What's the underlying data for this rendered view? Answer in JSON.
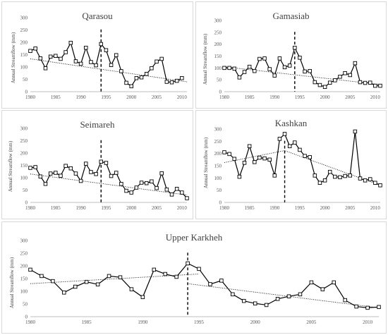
{
  "chart_data": [
    {
      "type": "line",
      "title": "Qarasou",
      "ylabel": "Annual Streamflow (mm)",
      "xlim": [
        1980,
        2011
      ],
      "ylim": [
        0,
        300
      ],
      "xticks": [
        1980,
        1985,
        1990,
        1995,
        2000,
        2005,
        2010
      ],
      "yticks": [
        0,
        50,
        100,
        150,
        200,
        250,
        300
      ],
      "change_point": 1994,
      "series": [
        {
          "x": [
            1980,
            1981,
            1982,
            1983,
            1984,
            1985,
            1986,
            1987,
            1988,
            1989,
            1990,
            1991,
            1992,
            1993,
            1994,
            1995,
            1996,
            1997,
            1998,
            1999,
            2000,
            2001,
            2002,
            2003,
            2004,
            2005,
            2006,
            2007,
            2008,
            2009,
            2010
          ],
          "values": [
            165,
            175,
            135,
            95,
            142,
            145,
            133,
            160,
            198,
            123,
            113,
            178,
            120,
            107,
            193,
            168,
            108,
            148,
            83,
            36,
            22,
            55,
            58,
            72,
            95,
            122,
            133,
            40,
            38,
            44,
            55
          ]
        }
      ],
      "trend": [
        [
          1980,
          133
        ],
        [
          2011,
          40
        ]
      ]
    },
    {
      "type": "line",
      "title": "Gamasiab",
      "ylabel": "Annual Streamflow (mm)",
      "xlim": [
        1980,
        2011
      ],
      "ylim": [
        0,
        300
      ],
      "xticks": [
        1980,
        1985,
        1990,
        1995,
        2000,
        2005,
        2010
      ],
      "yticks": [
        0,
        50,
        100,
        150,
        200,
        250,
        300
      ],
      "change_point": 1994,
      "series": [
        {
          "x": [
            1980,
            1981,
            1982,
            1983,
            1984,
            1985,
            1986,
            1987,
            1988,
            1989,
            1990,
            1991,
            1992,
            1993,
            1994,
            1995,
            1996,
            1997,
            1998,
            1999,
            2000,
            2001,
            2002,
            2003,
            2004,
            2005,
            2006,
            2007,
            2008,
            2009,
            2010,
            2011
          ],
          "values": [
            100,
            100,
            97,
            60,
            83,
            105,
            87,
            138,
            140,
            95,
            68,
            140,
            103,
            110,
            185,
            143,
            85,
            87,
            40,
            28,
            20,
            38,
            48,
            63,
            78,
            70,
            120,
            40,
            37,
            38,
            25,
            25
          ]
        }
      ],
      "trend": [
        [
          1980,
          105
        ],
        [
          2011,
          30
        ]
      ]
    },
    {
      "type": "line",
      "title": "Seimareh",
      "ylabel": "Annual Streamflow (mm)",
      "xlim": [
        1980,
        2011
      ],
      "ylim": [
        0,
        300
      ],
      "xticks": [
        1980,
        1985,
        1990,
        1995,
        2000,
        2005,
        2010
      ],
      "yticks": [
        0,
        50,
        100,
        150,
        200,
        250,
        300
      ],
      "change_point": 1994,
      "series": [
        {
          "x": [
            1980,
            1981,
            1982,
            1983,
            1984,
            1985,
            1986,
            1987,
            1988,
            1989,
            1990,
            1991,
            1992,
            1993,
            1994,
            1995,
            1996,
            1997,
            1998,
            1999,
            2000,
            2001,
            2002,
            2003,
            2004,
            2005,
            2006,
            2007,
            2008,
            2009,
            2010,
            2011
          ],
          "values": [
            140,
            143,
            105,
            75,
            117,
            120,
            108,
            148,
            138,
            117,
            87,
            157,
            123,
            115,
            165,
            160,
            107,
            120,
            75,
            47,
            40,
            60,
            80,
            78,
            85,
            58,
            118,
            52,
            32,
            55,
            40,
            17
          ]
        }
      ],
      "trend": [
        [
          1980,
          115
        ],
        [
          2011,
          30
        ]
      ]
    },
    {
      "type": "line",
      "title": "Kashkan",
      "ylabel": "Annual Streamflow (mm)",
      "xlim": [
        1980,
        2011
      ],
      "ylim": [
        0,
        300
      ],
      "xticks": [
        1980,
        1985,
        1990,
        1995,
        2000,
        2005,
        2010
      ],
      "yticks": [
        0,
        50,
        100,
        150,
        200,
        250,
        300
      ],
      "change_point": 1992,
      "series": [
        {
          "x": [
            1980,
            1981,
            1982,
            1983,
            1984,
            1985,
            1986,
            1987,
            1988,
            1989,
            1990,
            1991,
            1992,
            1993,
            1994,
            1995,
            1996,
            1997,
            1998,
            1999,
            2000,
            2001,
            2002,
            2003,
            2004,
            2005,
            2006,
            2007,
            2008,
            2009,
            2010,
            2011
          ],
          "values": [
            205,
            198,
            178,
            105,
            162,
            230,
            165,
            183,
            180,
            175,
            110,
            260,
            280,
            230,
            245,
            215,
            190,
            185,
            110,
            80,
            90,
            125,
            105,
            103,
            108,
            110,
            290,
            98,
            90,
            95,
            80,
            70
          ]
        }
      ],
      "trend": [
        [
          1980,
          163
        ],
        [
          1992,
          212
        ],
        [
          2011,
          70
        ]
      ]
    },
    {
      "type": "line",
      "title": "Upper Karkheh",
      "ylabel": "Annual Streamflow (mm)",
      "xlim": [
        1980,
        2011
      ],
      "ylim": [
        0,
        300
      ],
      "xticks": [
        1980,
        1985,
        1990,
        1995,
        2000,
        2005,
        2010
      ],
      "yticks": [
        0,
        50,
        100,
        150,
        200,
        250,
        300
      ],
      "change_point": 1994,
      "series": [
        {
          "x": [
            1980,
            1981,
            1982,
            1983,
            1984,
            1985,
            1986,
            1987,
            1988,
            1989,
            1990,
            1991,
            1992,
            1993,
            1994,
            1995,
            1996,
            1997,
            1998,
            1999,
            2000,
            2001,
            2002,
            2003,
            2004,
            2005,
            2006,
            2007,
            2008,
            2009,
            2010,
            2011
          ],
          "values": [
            185,
            160,
            140,
            95,
            118,
            137,
            127,
            160,
            155,
            108,
            77,
            185,
            168,
            157,
            210,
            188,
            128,
            142,
            88,
            62,
            52,
            46,
            70,
            80,
            88,
            135,
            108,
            135,
            65,
            40,
            35,
            38
          ]
        }
      ],
      "trend": [
        [
          1980,
          130
        ],
        [
          1995,
          168
        ]
      ],
      "trend2": [
        [
          1994,
          130
        ],
        [
          2011,
          35
        ]
      ]
    }
  ]
}
